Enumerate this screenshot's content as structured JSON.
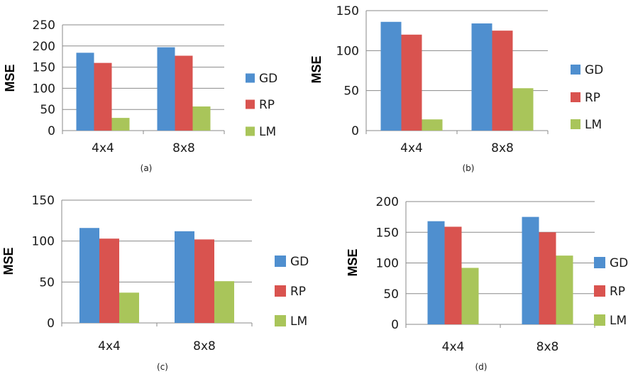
{
  "colors": {
    "GD": "#4f8fcf",
    "RP": "#d9534f",
    "LM": "#a9c55a",
    "grid": "#8a8a8a",
    "axis": "#8a8a8a"
  },
  "chart_data": [
    {
      "type": "bar",
      "caption": "(a)",
      "ylabel": "MSE",
      "categories": [
        "4x4",
        "8x8"
      ],
      "ylim": [
        0,
        250
      ],
      "yticks": [
        0,
        50,
        100,
        150,
        200,
        250
      ],
      "grid": true,
      "legend": "right",
      "series": [
        {
          "name": "GD",
          "values": [
            184,
            197
          ]
        },
        {
          "name": "RP",
          "values": [
            160,
            177
          ]
        },
        {
          "name": "LM",
          "values": [
            30,
            57
          ]
        }
      ]
    },
    {
      "type": "bar",
      "caption": "(b)",
      "ylabel": "MSE",
      "categories": [
        "4x4",
        "8x8"
      ],
      "ylim": [
        0,
        150
      ],
      "yticks": [
        0,
        50,
        100,
        150
      ],
      "grid": true,
      "legend": "right",
      "series": [
        {
          "name": "GD",
          "values": [
            136,
            134
          ]
        },
        {
          "name": "RP",
          "values": [
            120,
            125
          ]
        },
        {
          "name": "LM",
          "values": [
            14,
            53
          ]
        }
      ]
    },
    {
      "type": "bar",
      "caption": "(c)",
      "ylabel": "MSE",
      "categories": [
        "4x4",
        "8x8"
      ],
      "ylim": [
        0,
        150
      ],
      "yticks": [
        0,
        50,
        100,
        150
      ],
      "grid": true,
      "legend": "right",
      "series": [
        {
          "name": "GD",
          "values": [
            116,
            112
          ]
        },
        {
          "name": "RP",
          "values": [
            103,
            102
          ]
        },
        {
          "name": "LM",
          "values": [
            37,
            51
          ]
        }
      ]
    },
    {
      "type": "bar",
      "caption": "(d)",
      "ylabel": "MSE",
      "categories": [
        "4x4",
        "8x8"
      ],
      "ylim": [
        0,
        200
      ],
      "yticks": [
        0,
        50,
        100,
        150,
        200
      ],
      "grid": true,
      "legend": "right",
      "series": [
        {
          "name": "GD",
          "values": [
            168,
            175
          ]
        },
        {
          "name": "RP",
          "values": [
            159,
            150
          ]
        },
        {
          "name": "LM",
          "values": [
            92,
            112
          ]
        }
      ]
    }
  ]
}
